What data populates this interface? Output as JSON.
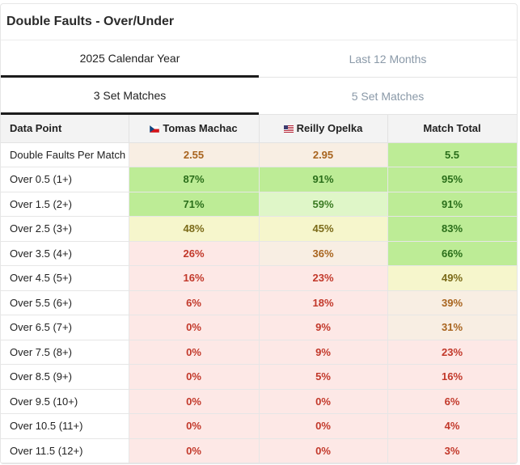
{
  "title": "Double Faults - Over/Under",
  "period_tabs": [
    {
      "label": "2025 Calendar Year",
      "active": true
    },
    {
      "label": "Last 12 Months",
      "active": false
    }
  ],
  "match_tabs": [
    {
      "label": "3 Set Matches",
      "active": true
    },
    {
      "label": "5 Set Matches",
      "active": false
    }
  ],
  "columns": {
    "data_point": "Data Point",
    "player1": "Tomas Machac",
    "player1_flag": "czech-flag-icon",
    "player2": "Reilly Opelka",
    "player2_flag": "usa-flag-icon",
    "total": "Match Total"
  },
  "colors": {
    "green": "#bdec96",
    "light_green": "#dff6c8",
    "yellow": "#f6f6cc",
    "beige": "#f8eee3",
    "red": "#fde8e6"
  },
  "rows": [
    {
      "label": "Double Faults Per Match",
      "p1": "2.55",
      "p2": "2.95",
      "total": "5.5"
    },
    {
      "label": "Over 0.5 (1+)",
      "p1": "87%",
      "p2": "91%",
      "total": "95%"
    },
    {
      "label": "Over 1.5 (2+)",
      "p1": "71%",
      "p2": "59%",
      "total": "91%"
    },
    {
      "label": "Over 2.5 (3+)",
      "p1": "48%",
      "p2": "45%",
      "total": "83%"
    },
    {
      "label": "Over 3.5 (4+)",
      "p1": "26%",
      "p2": "36%",
      "total": "66%"
    },
    {
      "label": "Over 4.5 (5+)",
      "p1": "16%",
      "p2": "23%",
      "total": "49%"
    },
    {
      "label": "Over 5.5 (6+)",
      "p1": "6%",
      "p2": "18%",
      "total": "39%"
    },
    {
      "label": "Over 6.5 (7+)",
      "p1": "0%",
      "p2": "9%",
      "total": "31%"
    },
    {
      "label": "Over 7.5 (8+)",
      "p1": "0%",
      "p2": "9%",
      "total": "23%"
    },
    {
      "label": "Over 8.5 (9+)",
      "p1": "0%",
      "p2": "5%",
      "total": "16%"
    },
    {
      "label": "Over 9.5 (10+)",
      "p1": "0%",
      "p2": "0%",
      "total": "6%"
    },
    {
      "label": "Over 10.5 (11+)",
      "p1": "0%",
      "p2": "0%",
      "total": "4%"
    },
    {
      "label": "Over 11.5 (12+)",
      "p1": "0%",
      "p2": "0%",
      "total": "3%"
    }
  ]
}
